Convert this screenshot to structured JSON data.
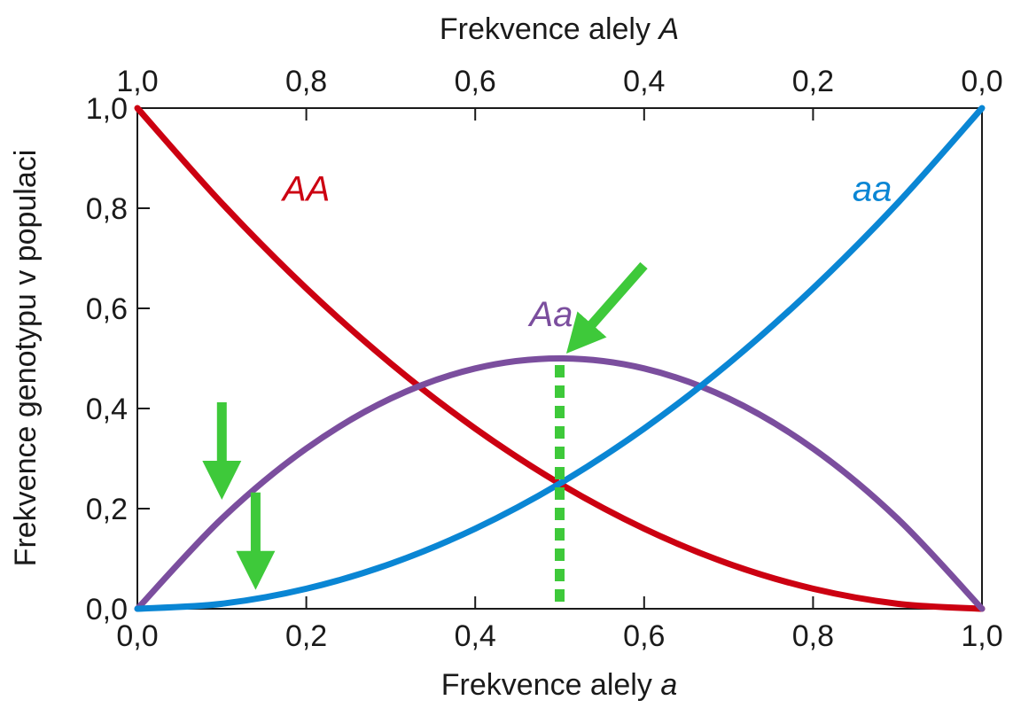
{
  "chart_data": {
    "type": "line",
    "x_bottom_label": "Frekvence alely",
    "x_bottom_label_var": "a",
    "x_top_label": "Frekvence alely",
    "x_top_label_var": "A",
    "ylabel": "Frekvence genotypu v populaci",
    "xlim": [
      0,
      1
    ],
    "ylim": [
      0,
      1
    ],
    "x_bottom_ticks": [
      "0,0",
      "0,2",
      "0,4",
      "0,6",
      "0,8",
      "1,0"
    ],
    "x_top_ticks": [
      "1,0",
      "0,8",
      "0,6",
      "0,4",
      "0,2",
      "0,0"
    ],
    "y_ticks": [
      "0,0",
      "0,2",
      "0,4",
      "0,6",
      "0,8",
      "1,0"
    ],
    "x": [
      0,
      0.1,
      0.2,
      0.3,
      0.4,
      0.5,
      0.6,
      0.7,
      0.8,
      0.9,
      1.0
    ],
    "series": [
      {
        "name": "AA",
        "color": "#cc0011",
        "values": [
          1.0,
          0.81,
          0.64,
          0.49,
          0.36,
          0.25,
          0.16,
          0.09,
          0.04,
          0.01,
          0.0
        ]
      },
      {
        "name": "Aa",
        "color": "#7b4e9e",
        "values": [
          0.0,
          0.18,
          0.32,
          0.42,
          0.48,
          0.5,
          0.48,
          0.42,
          0.32,
          0.18,
          0.0
        ]
      },
      {
        "name": "aa",
        "color": "#0a86d4",
        "values": [
          0.0,
          0.01,
          0.04,
          0.09,
          0.16,
          0.25,
          0.36,
          0.49,
          0.64,
          0.81,
          1.0
        ]
      }
    ],
    "annotations": {
      "dotted_line": {
        "x": 0.5,
        "y_from": 0.0,
        "y_to": 0.5,
        "color": "#3ec93a"
      },
      "arrow_color": "#3ec93a",
      "arrows": [
        {
          "target_x": 0.5,
          "target_y": 0.5,
          "direction": "down-left"
        },
        {
          "target_x": 0.1,
          "target_y": 0.2,
          "direction": "down"
        },
        {
          "target_x": 0.14,
          "target_y": 0.02,
          "direction": "down"
        }
      ]
    },
    "grid": false,
    "legend": "none"
  }
}
